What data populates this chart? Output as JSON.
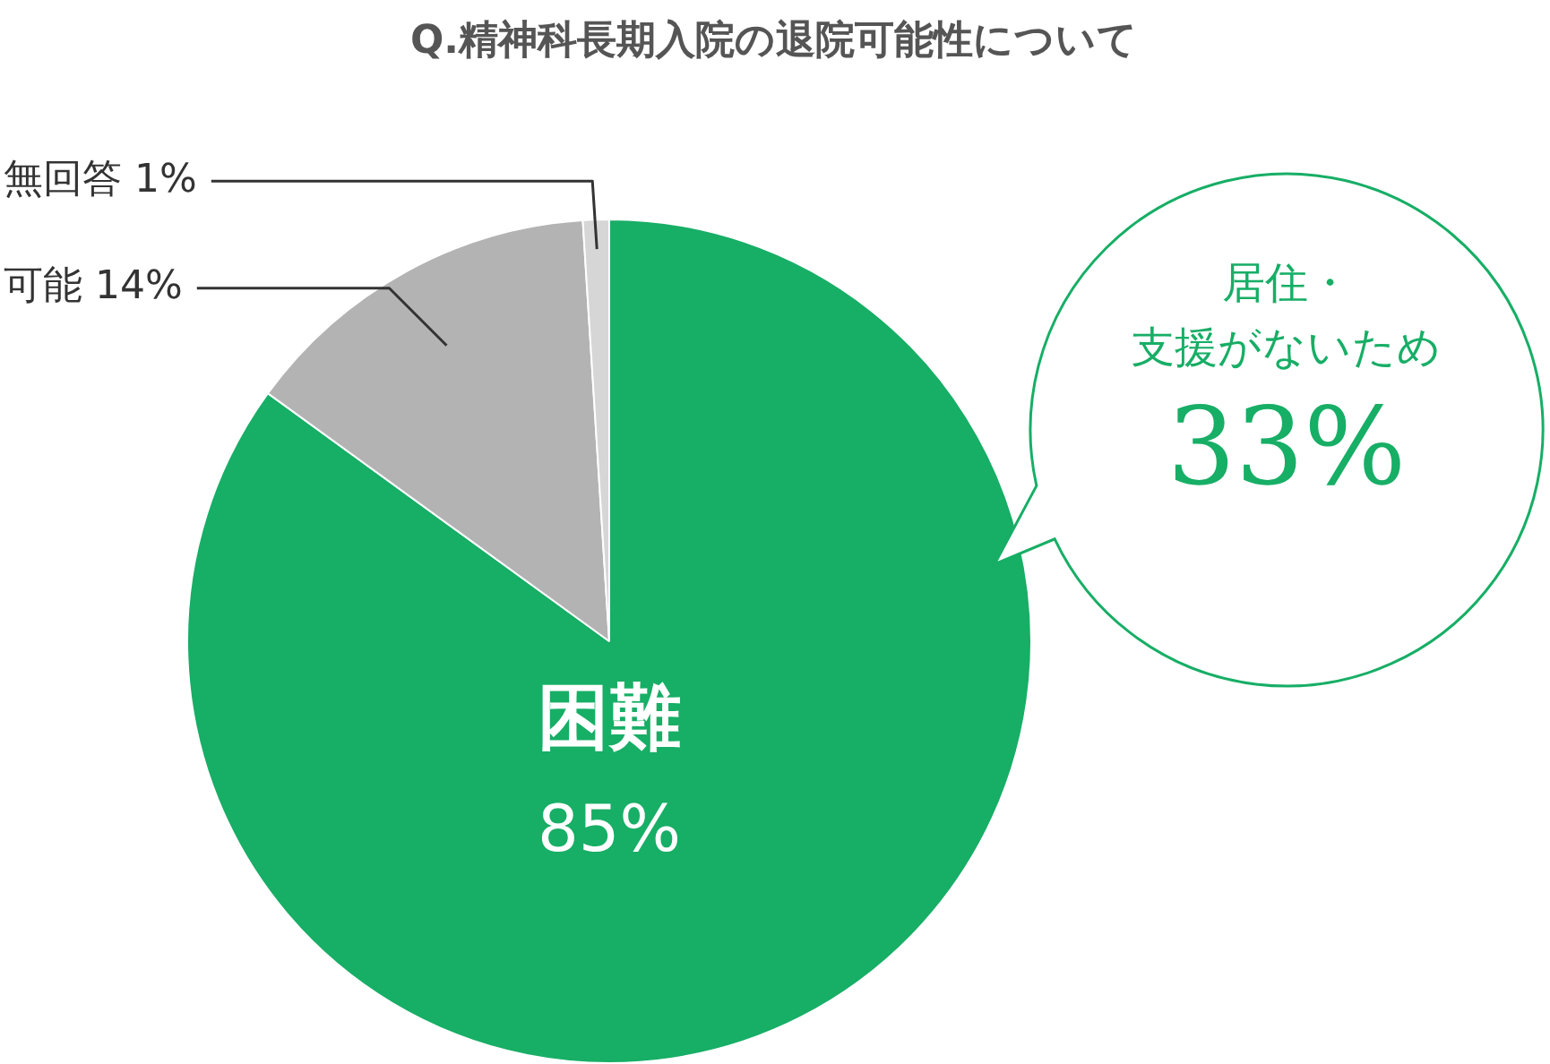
{
  "chart_data": {
    "type": "pie",
    "title": "Q.精神科長期入院の退院可能性について",
    "categories": [
      "困難",
      "可能",
      "無回答"
    ],
    "values": [
      85,
      14,
      1
    ],
    "value_labels": [
      "85%",
      "14%",
      "1%"
    ],
    "colors": [
      "#17ae66",
      "#b3b3b3",
      "#d6d6d6"
    ],
    "legend": false,
    "annotations": [
      "居住・",
      "支援がないため",
      "33%"
    ]
  }
}
